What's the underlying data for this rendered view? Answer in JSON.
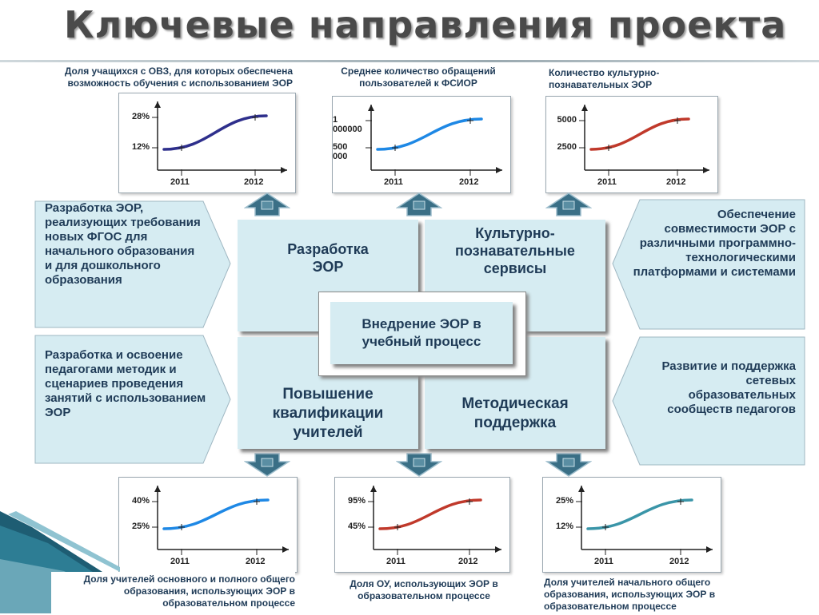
{
  "title": "Ключевые направления проекта",
  "top_captions": [
    "Доля учащихся с ОВЗ, для которых обеспечена возможность обучения с использованием ЭОР",
    "Среднее количество обращений пользователей к ФСИОР",
    "Количество культурно-познавательных ЭОР"
  ],
  "bottom_captions": [
    "Доля учителей основного и полного общего образования, использующих ЭОР в образовательном процессе",
    "Доля ОУ, использующих ЭОР в образовательном процессе",
    "Доля учителей начального общего образования, использующих ЭОР в образовательном процессе"
  ],
  "center_boxes": {
    "top_left": "Разработка ЭОР",
    "top_right": "Культурно-познавательные сервисы",
    "bottom_left": "Повышение квалификации учителей",
    "bottom_right": "Методическая поддержка",
    "center": "Внедрение ЭОР в учебный процесс"
  },
  "side_boxes": {
    "left_top": "Разработка ЭОР, реализующих требования новых ФГОС для начального образования и для дошкольного образования",
    "left_bottom": "Разработка и освоение педагогами методик и сценариев проведения занятий с использованием ЭОР",
    "right_top": "Обеспечение совместимости ЭОР с различными программно-технологическими платформами и системами",
    "right_bottom": "Развитие и поддержка сетевых образовательных сообществ педагогов"
  },
  "chart_data": [
    {
      "type": "line",
      "x": [
        "2011",
        "2012"
      ],
      "y_ticks": [
        "12%",
        "28%"
      ],
      "values": [
        12,
        28
      ],
      "color": "#2e2f8c"
    },
    {
      "type": "line",
      "x": [
        "2011",
        "2012"
      ],
      "y_ticks": [
        "500 000",
        "1 000000"
      ],
      "values": [
        500000,
        1000000
      ],
      "color": "#1e88e5"
    },
    {
      "type": "line",
      "x": [
        "2011",
        "2012"
      ],
      "y_ticks": [
        "2500",
        "5000"
      ],
      "values": [
        2500,
        5000
      ],
      "color": "#c0392b"
    },
    {
      "type": "line",
      "x": [
        "2011",
        "2012"
      ],
      "y_ticks": [
        "25%",
        "40%"
      ],
      "values": [
        25,
        40
      ],
      "color": "#1e88e5"
    },
    {
      "type": "line",
      "x": [
        "2011",
        "2012"
      ],
      "y_ticks": [
        "45%",
        "95%"
      ],
      "values": [
        45,
        95
      ],
      "color": "#c0392b"
    },
    {
      "type": "line",
      "x": [
        "2011",
        "2012"
      ],
      "y_ticks": [
        "12%",
        "25%"
      ],
      "values": [
        12,
        25
      ],
      "color": "#3a95a8"
    }
  ],
  "colors": {
    "box_fill": "#d6ecf2",
    "text": "#1f3b57",
    "arrow": "#3a6f86"
  }
}
